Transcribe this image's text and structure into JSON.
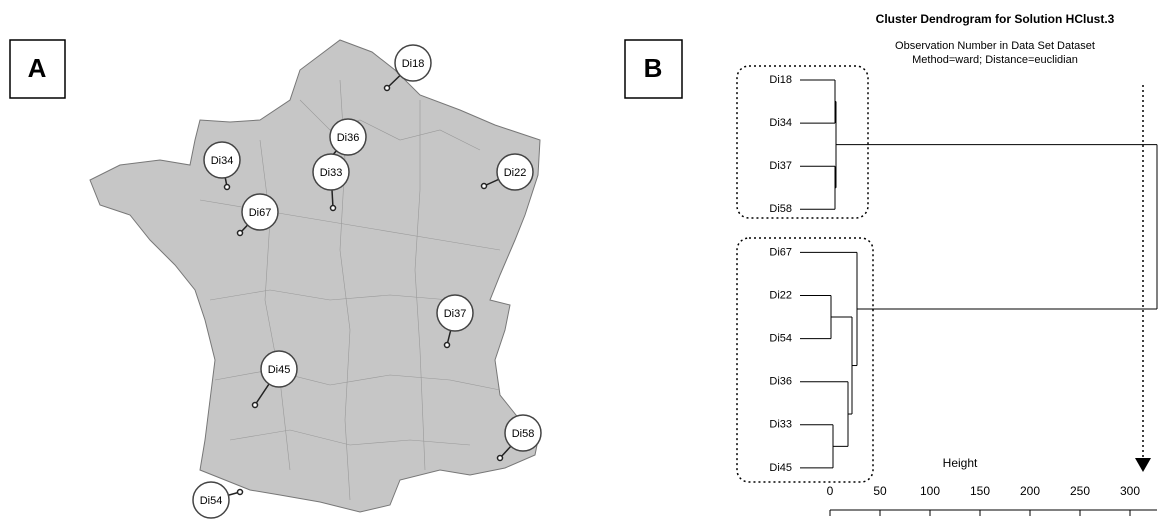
{
  "panel_a": {
    "label": "A",
    "sites": [
      "Di18",
      "Di34",
      "Di36",
      "Di33",
      "Di22",
      "Di67",
      "Di37",
      "Di45",
      "Di58",
      "Di54"
    ]
  },
  "panel_b": {
    "label": "B",
    "chart_data": {
      "type": "dendrogram",
      "title": "Cluster Dendrogram for Solution HClust.3",
      "subtitle": [
        "Observation Number in Data Set Dataset",
        "Method=ward; Distance=euclidian"
      ],
      "x_label": "Height",
      "leaves": [
        "Di18",
        "Di34",
        "Di37",
        "Di58",
        "Di67",
        "Di22",
        "Di54",
        "Di36",
        "Di33",
        "Di45"
      ],
      "merges": [
        {
          "children": [
            -1,
            -2
          ],
          "height": 5
        },
        {
          "children": [
            -3,
            -4
          ],
          "height": 5
        },
        {
          "children": [
            1,
            2
          ],
          "height": 6
        },
        {
          "children": [
            -6,
            -7
          ],
          "height": 1
        },
        {
          "children": [
            -9,
            -10
          ],
          "height": 3
        },
        {
          "children": [
            -8,
            5
          ],
          "height": 18
        },
        {
          "children": [
            4,
            6
          ],
          "height": 22
        },
        {
          "children": [
            -5,
            7
          ],
          "height": 27
        },
        {
          "children": [
            3,
            8
          ],
          "height": 327
        }
      ],
      "xlim": [
        0,
        327
      ],
      "xticks": [
        0,
        50,
        100,
        150,
        200,
        250,
        300
      ]
    }
  }
}
